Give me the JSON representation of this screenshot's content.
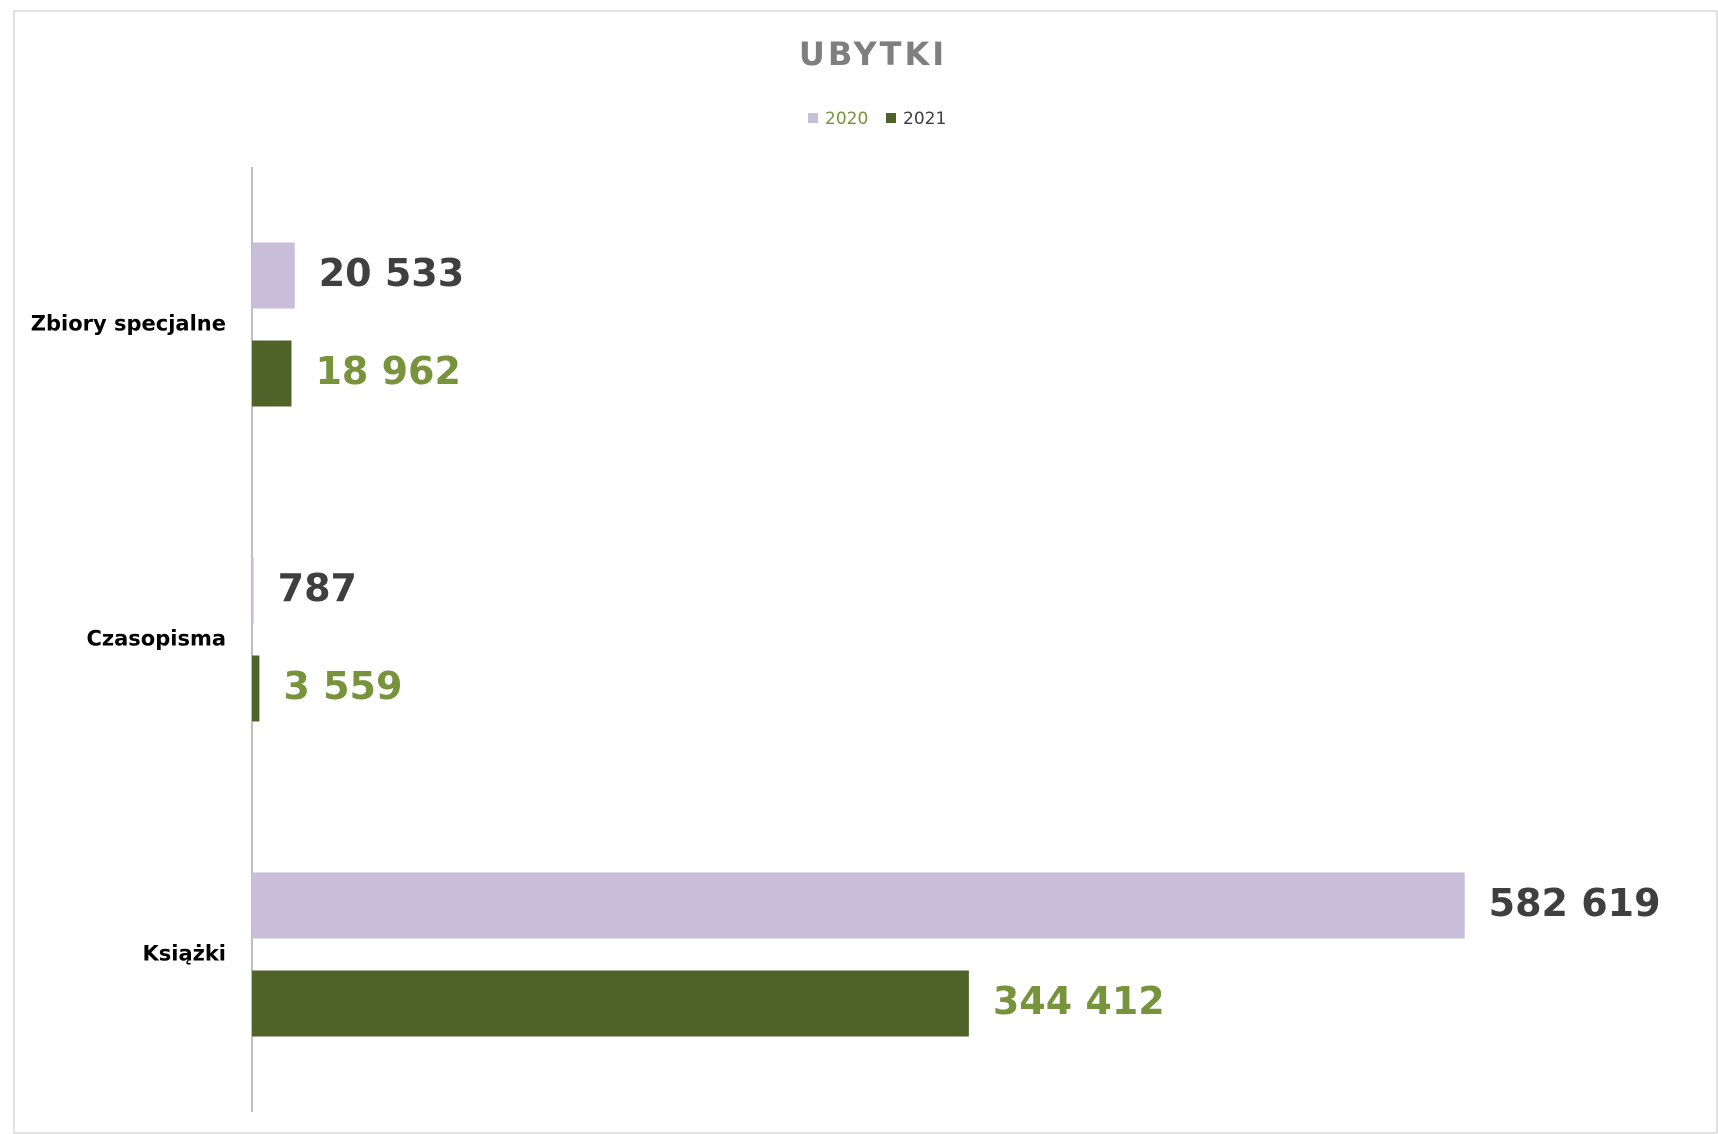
{
  "chart_data": {
    "type": "hbar",
    "title": "UBYTKI",
    "categories": [
      "Zbiory specjalne",
      "Czasopisma",
      "Książki"
    ],
    "series": [
      {
        "name": "2020",
        "color": "#c8bed9",
        "label_color": "#3f3f3f",
        "values": [
          20533,
          787,
          582619
        ],
        "value_labels": [
          "20 533",
          "787",
          "582 619"
        ]
      },
      {
        "name": "2021",
        "color": "#4f6228",
        "label_color": "#77933c",
        "values": [
          18962,
          3559,
          344412
        ],
        "value_labels": [
          "18 962",
          "3 559",
          "344 412"
        ]
      }
    ],
    "xlim": [
      0,
      700000
    ],
    "legend": "top"
  }
}
